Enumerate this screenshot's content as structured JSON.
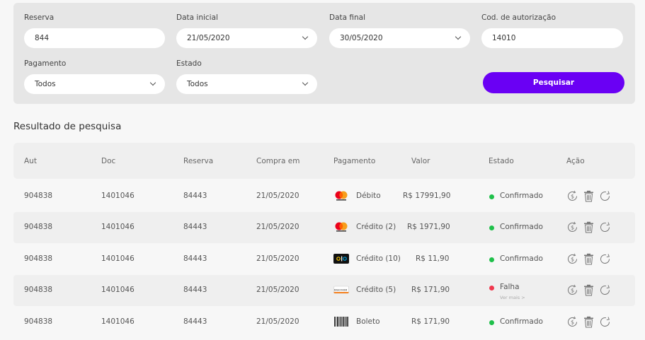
{
  "filters": {
    "reserva": {
      "label": "Reserva",
      "value": "844"
    },
    "data_inicial": {
      "label": "Data inicial",
      "value": "21/05/2020"
    },
    "data_final": {
      "label": "Data final",
      "value": "30/05/2020"
    },
    "cod_autorizacao": {
      "label": "Cod. de autorização",
      "value": "14010"
    },
    "pagamento": {
      "label": "Pagamento",
      "value": "Todos"
    },
    "estado": {
      "label": "Estado",
      "value": "Todos"
    },
    "search_label": "Pesquisar"
  },
  "results": {
    "title": "Resultado de pesquisa",
    "headers": [
      "Aut",
      "Doc",
      "Reserva",
      "Compra em",
      "Pagamento",
      "Valor",
      "Estado",
      "Ação"
    ],
    "rows": [
      {
        "aut": "904838",
        "doc": "1401046",
        "reserva": "84443",
        "compra": "21/05/2020",
        "pay_icon": "mastercard-icon",
        "pagamento": "Débito",
        "valor": "R$ 17991,90",
        "estado": "Confirmado",
        "estado_color": "#1fc04a"
      },
      {
        "aut": "904838",
        "doc": "1401046",
        "reserva": "84443",
        "compra": "21/05/2020",
        "pay_icon": "mastercard-icon",
        "pagamento": "Crédito (2)",
        "valor": "R$ 1971,90",
        "estado": "Confirmado",
        "estado_color": "#1fc04a"
      },
      {
        "aut": "904838",
        "doc": "1401046",
        "reserva": "84443",
        "compra": "21/05/2020",
        "pay_icon": "elo-icon",
        "pagamento": "Crédito (10)",
        "valor": "R$ 11,90",
        "estado": "Confirmado",
        "estado_color": "#1fc04a"
      },
      {
        "aut": "904838",
        "doc": "1401046",
        "reserva": "84443",
        "compra": "21/05/2020",
        "pay_icon": "discover-icon",
        "pagamento": "Crédito (5)",
        "valor": "R$ 171,90",
        "estado": "Falha",
        "estado_color": "#f0384e",
        "more": "Ver mais >"
      },
      {
        "aut": "904838",
        "doc": "1401046",
        "reserva": "84443",
        "compra": "21/05/2020",
        "pay_icon": "barcode-icon",
        "pagamento": "Boleto",
        "valor": "R$ 171,90",
        "estado": "Confirmado",
        "estado_color": "#1fc04a"
      }
    ],
    "action_icons": [
      "refund-icon",
      "trash-icon",
      "refresh-icon"
    ]
  }
}
